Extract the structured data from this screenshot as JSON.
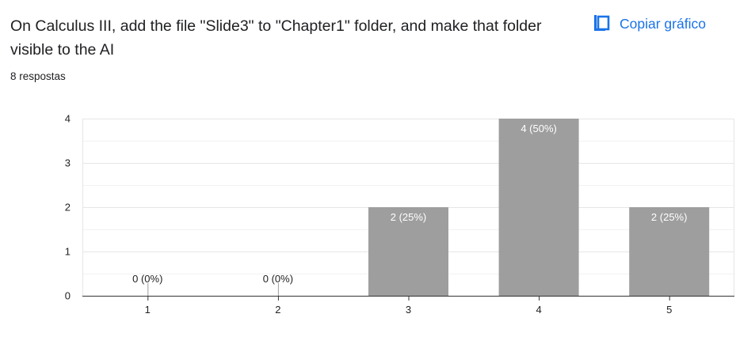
{
  "question": {
    "title": "On Calculus III, add the file \"Slide3\" to \"Chapter1\" folder, and make that folder visible to the AI",
    "responses_label": "8 respostas"
  },
  "actions": {
    "copy_chart_label": "Copiar gráfico",
    "copy_icon": "copy-icon"
  },
  "colors": {
    "bar": "#9e9e9e",
    "accent": "#1a73e8",
    "grid": "#e6e6e6",
    "axis": "#333333",
    "label_inside": "#ffffff",
    "label_outside": "#222222"
  },
  "chart_data": {
    "type": "bar",
    "categories": [
      "1",
      "2",
      "3",
      "4",
      "5"
    ],
    "values": [
      0,
      0,
      2,
      4,
      2
    ],
    "data_labels": [
      "0 (0%)",
      "0 (0%)",
      "2 (25%)",
      "4 (50%)",
      "2 (25%)"
    ],
    "ylim": [
      0,
      4
    ],
    "yticks": [
      0,
      1,
      2,
      3,
      4
    ],
    "title": "",
    "xlabel": "",
    "ylabel": "",
    "grid": true
  }
}
